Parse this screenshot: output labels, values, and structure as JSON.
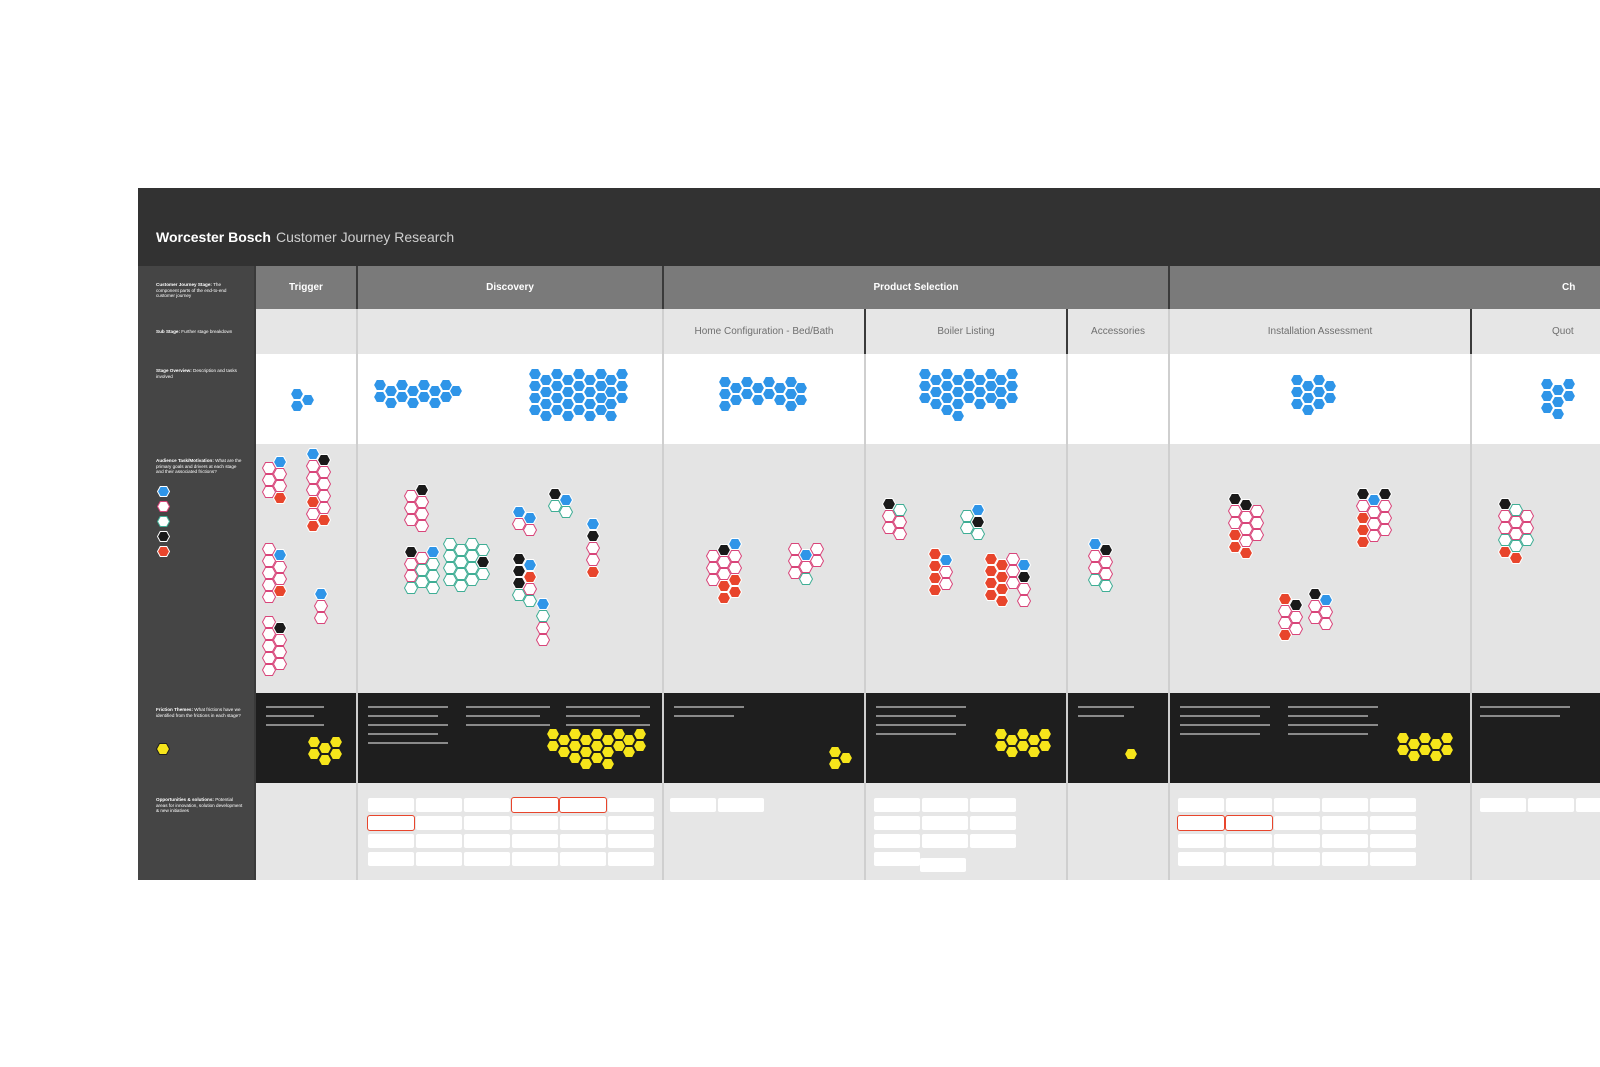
{
  "title": {
    "brand": "Worcester Bosch",
    "subtitle": "Customer Journey Research"
  },
  "row_labels": [
    {
      "bold": "Customer Journey Stage:",
      "text": "The component parts of the end-to-end customer journey"
    },
    {
      "bold": "Sub Stage:",
      "text": "Further stage breakdown"
    },
    {
      "bold": "Stage Overview:",
      "text": "Description and tasks involved"
    },
    {
      "bold": "Audience Task/Motivation:",
      "text": "What are the primary goals and drivers at each stage and their associated frictions?"
    },
    {
      "bold": "Friction Themes:",
      "text": "What frictions have we identified from the frictions in each stage?"
    },
    {
      "bold": "Opportunities & solutions:",
      "text": "Potential areas for innovation, solution development & new initiatives"
    }
  ],
  "stages": [
    "Trigger",
    "Discovery",
    "Product Selection",
    "Ch"
  ],
  "sub_stages": [
    "Home Configuration - Bed/Bath",
    "Boiler Listing",
    "Accessories",
    "Installation Assessment",
    "Quot"
  ],
  "colors": {
    "blue": "#2f95e8",
    "pink": "#d9457a",
    "teal": "#3fae95",
    "black": "#1a1a1a",
    "red": "#e8452c",
    "yellow": "#f6e51b"
  },
  "legend_icons": [
    "blue-hex-icon",
    "pink-hex-icon",
    "teal-hex-icon",
    "black-hex-icon",
    "red-hex-icon"
  ]
}
